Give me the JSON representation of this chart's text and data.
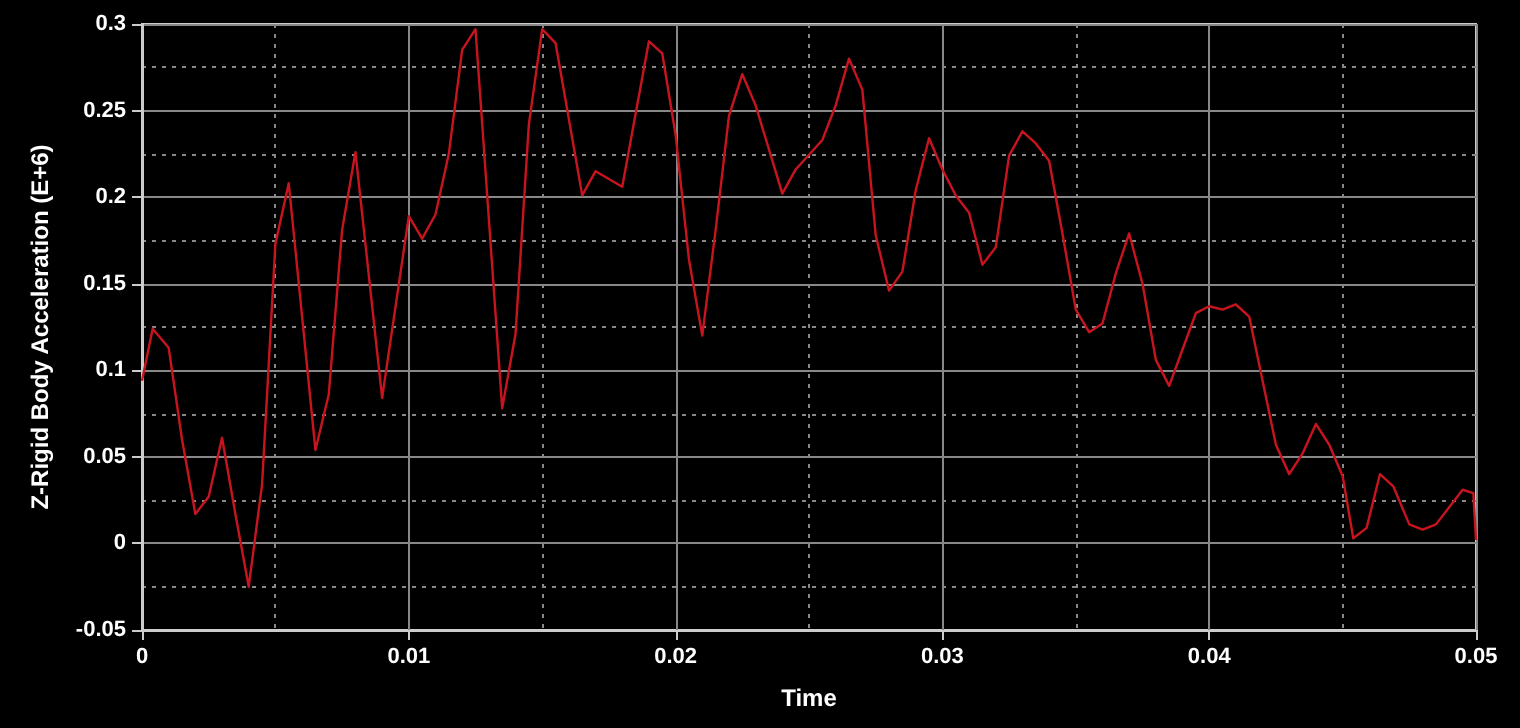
{
  "chart_data": {
    "type": "line",
    "xlabel": "Time",
    "ylabel": "Z-Rigid Body Acceleration (E+6)",
    "xlim": [
      0,
      0.05
    ],
    "xticks": [
      0,
      0.01,
      0.02,
      0.03,
      0.04,
      0.05
    ],
    "ylim": [
      -0.05,
      0.3
    ],
    "yticks": [
      -0.05,
      0,
      0.05,
      0.1,
      0.15,
      0.2,
      0.25,
      0.3
    ],
    "grid": true,
    "marker": "none",
    "line_style": "solid",
    "series": [
      {
        "color": "#c8141e",
        "x": [
          0,
          0.0004,
          0.001,
          0.0015,
          0.002,
          0.0025,
          0.003,
          0.0035,
          0.004,
          0.0045,
          0.005,
          0.0055,
          0.0065,
          0.007,
          0.0075,
          0.008,
          0.009,
          0.01,
          0.0105,
          0.011,
          0.0115,
          0.012,
          0.0125,
          0.0135,
          0.014,
          0.0145,
          0.015,
          0.0155,
          0.0165,
          0.017,
          0.018,
          0.019,
          0.0195,
          0.02,
          0.0205,
          0.021,
          0.0215,
          0.022,
          0.0225,
          0.023,
          0.024,
          0.0245,
          0.0255,
          0.026,
          0.0265,
          0.027,
          0.0275,
          0.028,
          0.0285,
          0.029,
          0.0295,
          0.03,
          0.0305,
          0.031,
          0.0315,
          0.032,
          0.0325,
          0.033,
          0.0335,
          0.034,
          0.0345,
          0.035,
          0.0355,
          0.036,
          0.0365,
          0.037,
          0.0375,
          0.038,
          0.0385,
          0.039,
          0.0395,
          0.04,
          0.0405,
          0.041,
          0.0415,
          0.042,
          0.0425,
          0.043,
          0.0435,
          0.044,
          0.0445,
          0.045,
          0.0454,
          0.0459,
          0.0464,
          0.0469,
          0.0475,
          0.048,
          0.0485,
          0.0495,
          0.0499,
          0.05
        ],
        "values": [
          0.094,
          0.124,
          0.113,
          0.06,
          0.017,
          0.027,
          0.061,
          0.017,
          -0.025,
          0.034,
          0.173,
          0.208,
          0.054,
          0.086,
          0.181,
          0.226,
          0.084,
          0.189,
          0.176,
          0.19,
          0.225,
          0.285,
          0.297,
          0.078,
          0.121,
          0.242,
          0.297,
          0.289,
          0.201,
          0.215,
          0.206,
          0.29,
          0.283,
          0.236,
          0.164,
          0.12,
          0.181,
          0.247,
          0.271,
          0.253,
          0.202,
          0.216,
          0.233,
          0.253,
          0.28,
          0.262,
          0.178,
          0.146,
          0.157,
          0.204,
          0.234,
          0.216,
          0.201,
          0.191,
          0.161,
          0.171,
          0.224,
          0.238,
          0.231,
          0.221,
          0.179,
          0.135,
          0.122,
          0.127,
          0.156,
          0.179,
          0.15,
          0.106,
          0.091,
          0.112,
          0.133,
          0.137,
          0.135,
          0.138,
          0.131,
          0.094,
          0.057,
          0.04,
          0.052,
          0.069,
          0.057,
          0.039,
          0.003,
          0.009,
          0.04,
          0.033,
          0.011,
          0.008,
          0.011,
          0.031,
          0.029,
          0.002
        ]
      }
    ]
  }
}
